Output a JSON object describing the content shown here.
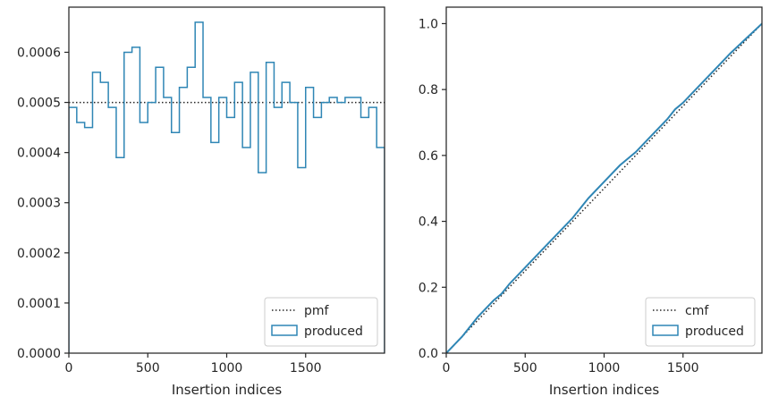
{
  "colors": {
    "series": "#2f86b5",
    "reference": "#262626",
    "axes": "#262626",
    "legend_border": "#cccccc"
  },
  "chart_data": [
    {
      "type": "line",
      "subtype": "step",
      "xlabel": "Insertion indices",
      "ylabel": "",
      "xlim": [
        0,
        2000
      ],
      "ylim": [
        0,
        0.00069
      ],
      "xticks": [
        0,
        500,
        1000,
        1500
      ],
      "xtick_labels": [
        "0",
        "500",
        "1000",
        "1500"
      ],
      "yticks": [
        0,
        0.0001,
        0.0002,
        0.0003,
        0.0004,
        0.0005,
        0.0006
      ],
      "ytick_labels": [
        "0.0000",
        "0.0001",
        "0.0002",
        "0.0003",
        "0.0004",
        "0.0005",
        "0.0006"
      ],
      "grid": false,
      "legend_position": "lower right",
      "series": [
        {
          "name": "pmf",
          "style": "dotted",
          "x": [
            0,
            2000
          ],
          "y": [
            0.0005,
            0.0005
          ]
        },
        {
          "name": "produced",
          "style": "step",
          "bin_width": 50,
          "values": [
            0.00049,
            0.00046,
            0.00045,
            0.00056,
            0.00054,
            0.00049,
            0.00039,
            0.0006,
            0.00061,
            0.00046,
            0.0005,
            0.00057,
            0.00051,
            0.00044,
            0.00053,
            0.00057,
            0.00066,
            0.00051,
            0.00042,
            0.00051,
            0.00047,
            0.00054,
            0.00041,
            0.00056,
            0.00036,
            0.00058,
            0.00049,
            0.00054,
            0.0005,
            0.00037,
            0.00053,
            0.00047,
            0.0005,
            0.00051,
            0.0005,
            0.00051,
            0.00051,
            0.00047,
            0.00049,
            0.00041
          ]
        }
      ]
    },
    {
      "type": "line",
      "subtype": "step",
      "xlabel": "Insertion indices",
      "ylabel": "",
      "xlim": [
        0,
        2000
      ],
      "ylim": [
        0,
        1.05
      ],
      "xticks": [
        0,
        500,
        1000,
        1500
      ],
      "xtick_labels": [
        "0",
        "500",
        "1000",
        "1500"
      ],
      "yticks": [
        0,
        0.2,
        0.4,
        0.6,
        0.8,
        1.0
      ],
      "ytick_labels": [
        "0.0",
        "0.2",
        "0.4",
        "0.6",
        "0.8",
        "1.0"
      ],
      "grid": false,
      "legend_position": "lower right",
      "series": [
        {
          "name": "cmf",
          "style": "dotted",
          "x": [
            0,
            2000
          ],
          "y": [
            0,
            1.0
          ]
        },
        {
          "name": "produced",
          "style": "step",
          "x": [
            0,
            100,
            200,
            300,
            350,
            400,
            500,
            600,
            700,
            800,
            850,
            900,
            1000,
            1100,
            1150,
            1200,
            1300,
            1400,
            1450,
            1500,
            1600,
            1700,
            1800,
            1900,
            2000
          ],
          "y": [
            0,
            0.05,
            0.11,
            0.16,
            0.18,
            0.21,
            0.26,
            0.31,
            0.36,
            0.41,
            0.44,
            0.47,
            0.52,
            0.57,
            0.59,
            0.61,
            0.66,
            0.71,
            0.74,
            0.76,
            0.81,
            0.86,
            0.91,
            0.955,
            1.0
          ]
        }
      ]
    }
  ]
}
